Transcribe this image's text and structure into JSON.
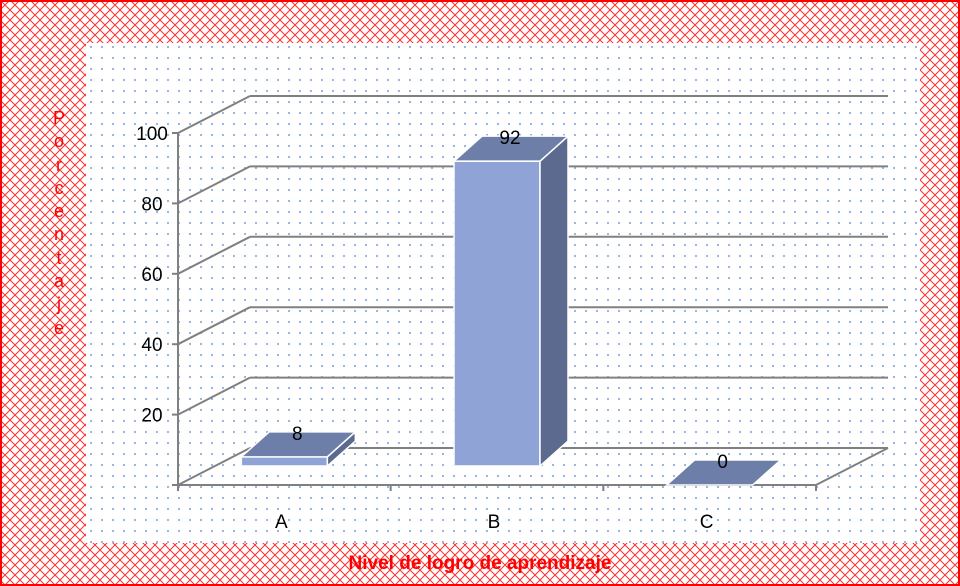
{
  "chart_data": {
    "type": "bar",
    "categories": [
      "A",
      "B",
      "C"
    ],
    "values": [
      8,
      92,
      0
    ],
    "data_labels": [
      "8",
      "92",
      "0"
    ],
    "title": "",
    "xlabel": "Nivel de logro de aprendizaje",
    "ylabel": "Porcentaje",
    "yticks": [
      20,
      40,
      60,
      80,
      100
    ],
    "ylim": [
      0,
      100
    ],
    "grid": true,
    "legend": "none",
    "style": "3d-column"
  },
  "colors": {
    "bar_front": "#8fa3d6",
    "bar_top": "#6d7fa8",
    "bar_side": "#5d6a8f",
    "frame_border": "#ff0000",
    "gridline": "#808080",
    "label_red": "#ff0000"
  }
}
